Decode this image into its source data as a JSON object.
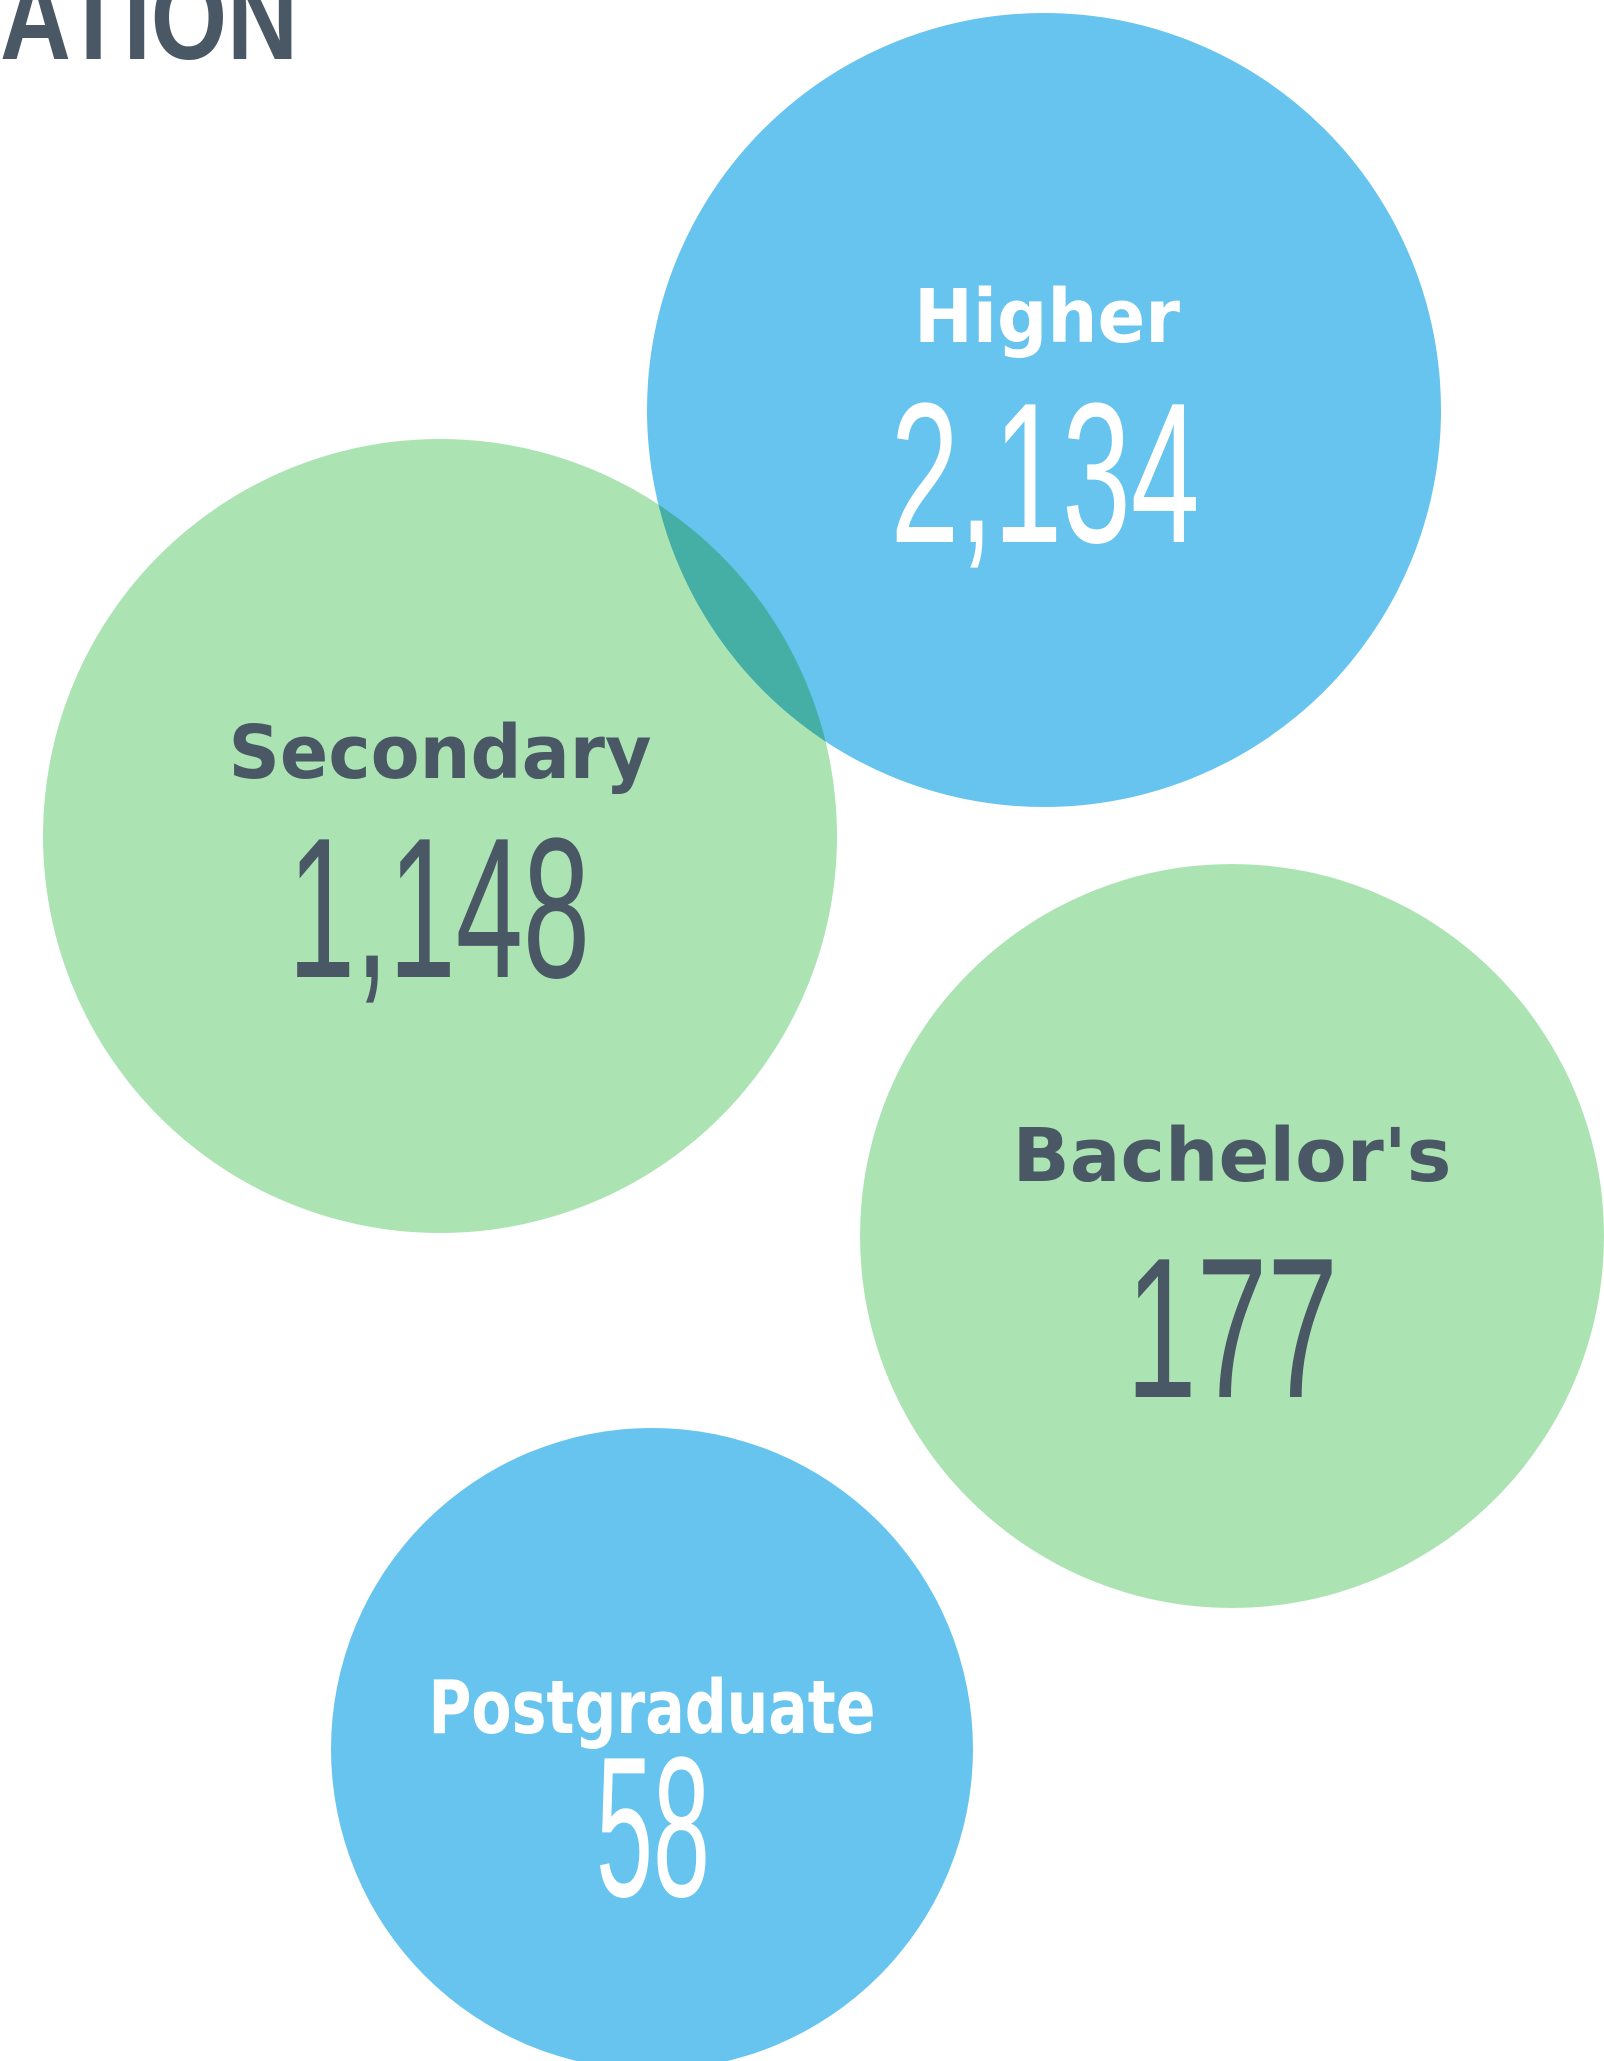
{
  "title": "ATION",
  "items": [
    {
      "label": "Higher",
      "value": "2,134"
    },
    {
      "label": "Secondary",
      "value": "1,148"
    },
    {
      "label": "Bachelor's",
      "value": "177"
    },
    {
      "label": "Postgraduate",
      "value": "58"
    }
  ]
}
